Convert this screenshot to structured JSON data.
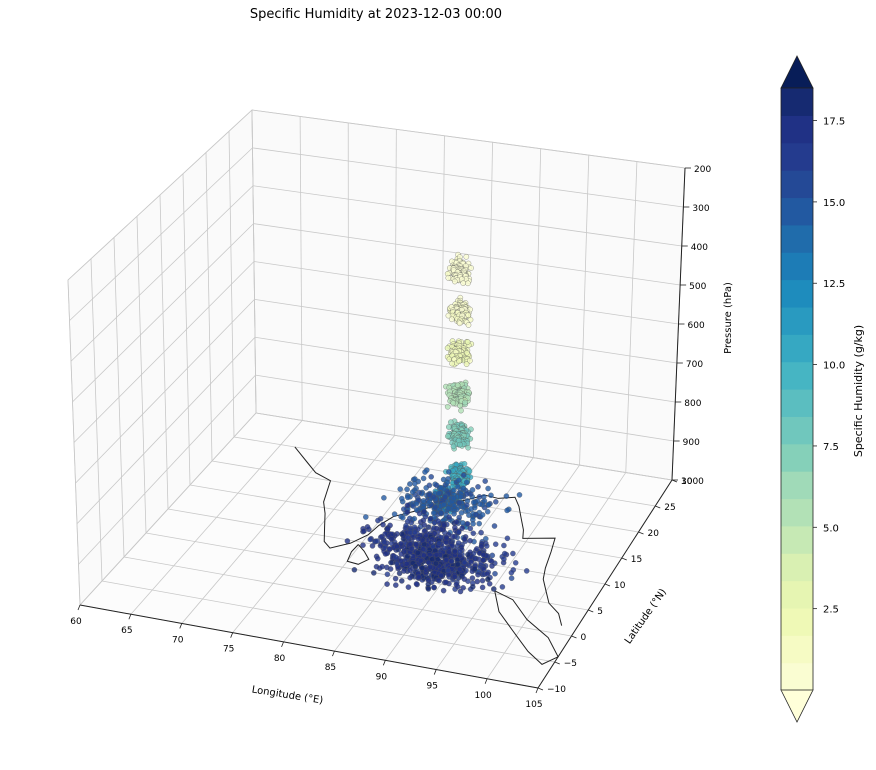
{
  "chart_data": {
    "type": "scatter",
    "title": "Specific Humidity at 2023-12-03 00:00",
    "xlabel": "Longitude (°E)",
    "ylabel": "Latitude (°N)",
    "zlabel": "Pressure (hPa)",
    "xlim": [
      60,
      105
    ],
    "ylim": [
      -10,
      30
    ],
    "zlim": [
      1000,
      200
    ],
    "z_inverted": true,
    "grid": true,
    "x_ticks": [
      "60",
      "65",
      "70",
      "75",
      "80",
      "85",
      "90",
      "95",
      "100",
      "105"
    ],
    "y_ticks": [
      "−10",
      "−5",
      "0",
      "5",
      "10",
      "15",
      "20",
      "25",
      "30"
    ],
    "z_ticks": [
      "200",
      "300",
      "400",
      "500",
      "600",
      "700",
      "800",
      "900",
      "1000"
    ],
    "colorbar": {
      "label": "Specific Humidity (g/kg)",
      "ticks": [
        "2.5",
        "5.0",
        "7.5",
        "10.0",
        "12.5",
        "15.0",
        "17.5"
      ],
      "tick_values": [
        2.5,
        5.0,
        7.5,
        10.0,
        12.5,
        15.0,
        17.5
      ],
      "vmin": 0,
      "vmax": 18.5,
      "colormap": "YlGnBu",
      "extend": "both",
      "low_color": "#ffffd9",
      "high_color": "#081d58",
      "colors": [
        "#fafdd2",
        "#f6fbc4",
        "#eff9b6",
        "#e6f5b2",
        "#d9f0b2",
        "#c6e9b4",
        "#b2e1b6",
        "#a0dab8",
        "#85d0b9",
        "#70c7bd",
        "#5bbec0",
        "#46b5c3",
        "#36a8c2",
        "#299ac0",
        "#1e8cbd",
        "#1d7cb6",
        "#206cab",
        "#2259a1",
        "#244996",
        "#243b8e",
        "#203185",
        "#162a71"
      ]
    },
    "series": [
      {
        "description_points": [
          {
            "lon": 88,
            "lat": 8,
            "p": 1000,
            "q": 17.5
          },
          {
            "lon": 86,
            "lat": 10,
            "p": 975,
            "q": 17.0
          },
          {
            "lon": 91,
            "lat": 6,
            "p": 950,
            "q": 16.5
          },
          {
            "lon": 88,
            "lat": 12,
            "p": 900,
            "q": 15.0
          },
          {
            "lon": 89,
            "lat": 9,
            "p": 850,
            "q": 12.0
          },
          {
            "lon": 90,
            "lat": 10,
            "p": 800,
            "q": 10.0
          },
          {
            "lon": 90,
            "lat": 10,
            "p": 700,
            "q": 7.5
          },
          {
            "lon": 90,
            "lat": 10,
            "p": 600,
            "q": 5.5
          },
          {
            "lon": 90,
            "lat": 10,
            "p": 500,
            "q": 2.0
          },
          {
            "lon": 90,
            "lat": 10,
            "p": 400,
            "q": 0.8
          },
          {
            "lon": 90,
            "lat": 10,
            "p": 300,
            "q": 0.2
          }
        ]
      }
    ]
  }
}
